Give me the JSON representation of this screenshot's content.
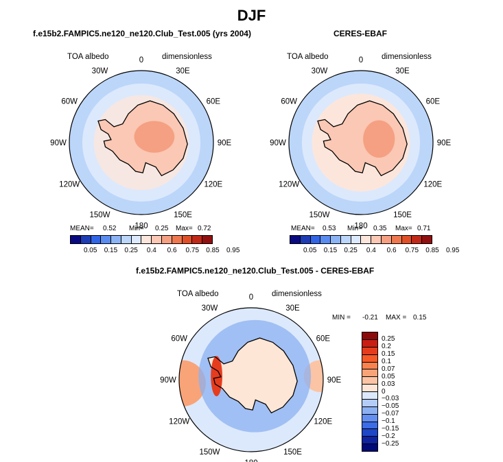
{
  "page": {
    "title": "DJF"
  },
  "panels": {
    "top_left": {
      "title": "f.e15b2.FAMPIC5.ne120_ne120.Club_Test.005 (yrs 2004)",
      "variable": "TOA albedo",
      "units": "dimensionless",
      "stats": {
        "mean_label": "MEAN=",
        "mean": "0.52",
        "min_label": "Min=",
        "min": "0.25",
        "max_label": "Max=",
        "max": "0.72"
      }
    },
    "top_right": {
      "title": "CERES-EBAF",
      "variable": "TOA albedo",
      "units": "dimensionless",
      "stats": {
        "mean_label": "MEAN=",
        "mean": "0.53",
        "min_label": "Min=",
        "min": "0.35",
        "max_label": "Max=",
        "max": "0.71"
      }
    },
    "bottom": {
      "title": "f.e15b2.FAMPIC5.ne120_ne120.Club_Test.005 - CERES-EBAF",
      "variable": "TOA albedo",
      "units": "dimensionless",
      "stats": {
        "min_label": "MIN =",
        "min": "-0.21",
        "max_label": "MAX =",
        "max": "0.15"
      }
    }
  },
  "map": {
    "projection": "south-polar-stereographic",
    "lon_labels": [
      "0",
      "30E",
      "60E",
      "90E",
      "120E",
      "150E",
      "180",
      "150W",
      "120W",
      "90W",
      "60W",
      "30W"
    ]
  },
  "colorbars": {
    "abs": {
      "ticks": [
        "0.05",
        "0.15",
        "0.25",
        "0.4",
        "0.6",
        "0.75",
        "0.85",
        "0.95"
      ],
      "colors": [
        "#0a0a80",
        "#1e3cb4",
        "#3264e6",
        "#5a8cf0",
        "#8cb4f5",
        "#bcd6fa",
        "#dce9fc",
        "#fce6dc",
        "#fac8b4",
        "#f5a082",
        "#ee7850",
        "#e05028",
        "#c02818",
        "#901010"
      ]
    },
    "diff": {
      "ticks": [
        "0.25",
        "0.2",
        "0.15",
        "0.1",
        "0.07",
        "0.05",
        "0.03",
        "0",
        "−0.03",
        "−0.05",
        "−0.07",
        "−0.1",
        "−0.15",
        "−0.2",
        "−0.25"
      ],
      "colors": [
        "#8c0a0a",
        "#c81e14",
        "#e63c1e",
        "#f55a28",
        "#f88250",
        "#f8a478",
        "#fbc4a4",
        "#fde6d6",
        "#dce9fc",
        "#b4cdf8",
        "#8cb0f2",
        "#648ff0",
        "#3c6ce6",
        "#1e46c8",
        "#0f23a0",
        "#000a78"
      ]
    }
  },
  "chart_data": [
    {
      "type": "map",
      "title": "f.e15b2.FAMPIC5.ne120_ne120.Club_Test.005 (yrs 2004)",
      "variable": "TOA albedo",
      "units": "dimensionless",
      "mean": 0.52,
      "min": 0.25,
      "max": 0.72,
      "levels": [
        0.05,
        0.15,
        0.25,
        0.4,
        0.6,
        0.75,
        0.85,
        0.95
      ]
    },
    {
      "type": "map",
      "title": "CERES-EBAF",
      "variable": "TOA albedo",
      "units": "dimensionless",
      "mean": 0.53,
      "min": 0.35,
      "max": 0.71,
      "levels": [
        0.05,
        0.15,
        0.25,
        0.4,
        0.6,
        0.75,
        0.85,
        0.95
      ]
    },
    {
      "type": "map",
      "title": "f.e15b2.FAMPIC5.ne120_ne120.Club_Test.005 - CERES-EBAF",
      "variable": "TOA albedo",
      "units": "dimensionless",
      "min": -0.21,
      "max": 0.15,
      "levels": [
        -0.25,
        -0.2,
        -0.15,
        -0.1,
        -0.07,
        -0.05,
        -0.03,
        0,
        0.03,
        0.05,
        0.07,
        0.1,
        0.15,
        0.2,
        0.25
      ]
    }
  ]
}
